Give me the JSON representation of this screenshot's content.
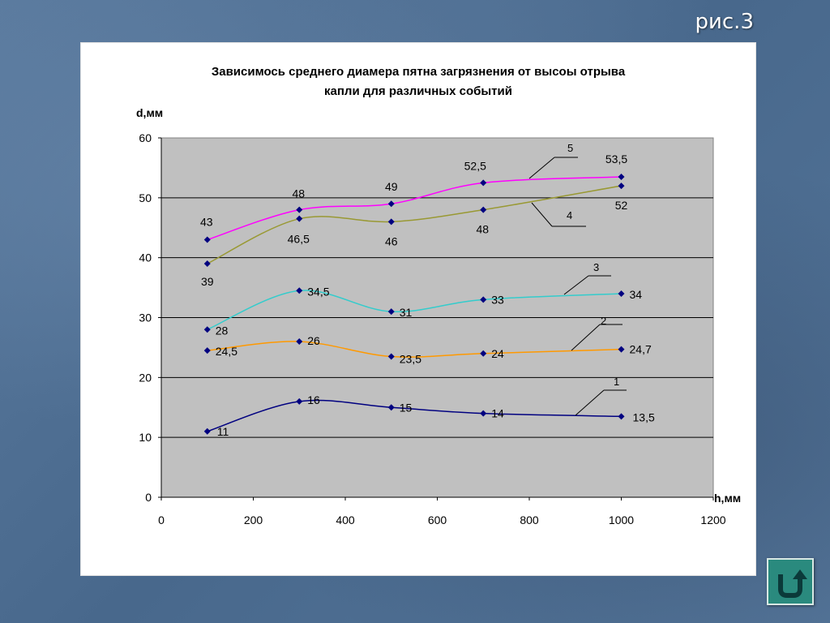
{
  "slide": {
    "label": "рис.3"
  },
  "colors": {
    "plot_bg": "#c0c0c0",
    "marker": "#000080",
    "series_1": "#000080",
    "series_2": "#ff9900",
    "series_3": "#33cccc",
    "series_4": "#999933",
    "series_5": "#ff00ff",
    "return_button": "#2a8a7e"
  },
  "icons": {
    "return_button": "u-turn-arrow-icon"
  },
  "chart_data": {
    "type": "line",
    "title": "Зависимось среднего диамера пятна загрязнения от высоы отрыва капли для различных событий",
    "title_lines": [
      "Зависимось среднего диамера пятна загрязнения от высоы отрыва",
      "капли для различных событий"
    ],
    "xlabel": "h,мм",
    "ylabel": "d,мм",
    "xlim": [
      0,
      1200
    ],
    "ylim": [
      0,
      60
    ],
    "x_ticks": [
      0,
      200,
      400,
      600,
      800,
      1000,
      1200
    ],
    "y_ticks": [
      0,
      10,
      20,
      30,
      40,
      50,
      60
    ],
    "x_tick_labels": [
      "0",
      "200",
      "400",
      "600",
      "800",
      "1000",
      "1200"
    ],
    "y_tick_labels": [
      "0",
      "10",
      "20",
      "30",
      "40",
      "50",
      "60"
    ],
    "grid": "horizontal",
    "legend": "none",
    "x": [
      100,
      300,
      500,
      700,
      1000
    ],
    "series": [
      {
        "id": "1",
        "values": [
          11,
          16,
          15,
          14,
          13.5
        ],
        "labels": [
          "11",
          "16",
          "15",
          "14",
          "13,5"
        ]
      },
      {
        "id": "2",
        "values": [
          24.5,
          26,
          23.5,
          24,
          24.7
        ],
        "labels": [
          "24,5",
          "26",
          "23,5",
          "24",
          "24,7"
        ]
      },
      {
        "id": "3",
        "values": [
          28,
          34.5,
          31,
          33,
          34
        ],
        "labels": [
          "28",
          "34,5",
          "31",
          "33",
          "34"
        ]
      },
      {
        "id": "4",
        "values": [
          39,
          46.5,
          46,
          48,
          52
        ],
        "labels": [
          "39",
          "46,5",
          "46",
          "48",
          "52"
        ]
      },
      {
        "id": "5",
        "values": [
          43,
          48,
          49,
          52.5,
          53.5
        ],
        "labels": [
          "43",
          "48",
          "49",
          "52,5",
          "53,5"
        ]
      }
    ],
    "series_tags": [
      "1",
      "2",
      "3",
      "4",
      "5"
    ]
  }
}
